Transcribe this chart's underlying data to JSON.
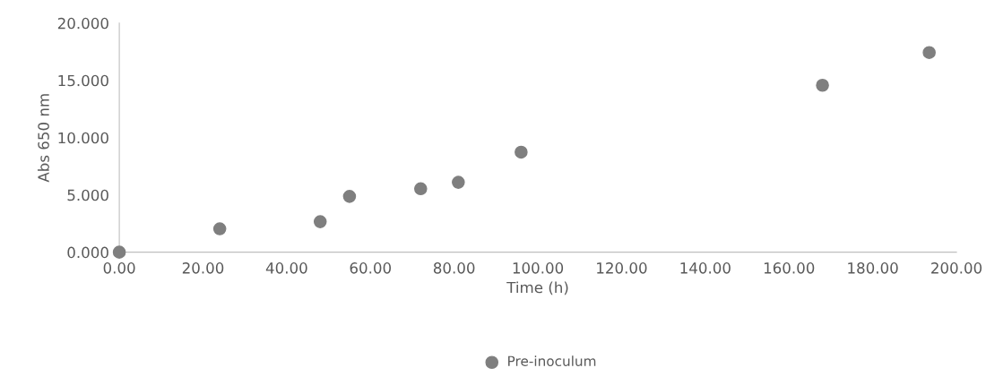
{
  "chart_data": {
    "type": "scatter",
    "xlabel": "Time (h)",
    "ylabel": "Abs 650 nm",
    "x": [
      0,
      24,
      48,
      55,
      72,
      81,
      96,
      168,
      193.5
    ],
    "series": [
      {
        "name": "Pre-inoculum",
        "color": "#7f7f7f",
        "values": [
          0,
          2.04,
          2.66,
          4.87,
          5.54,
          6.1,
          8.73,
          14.57,
          17.43
        ]
      }
    ],
    "xlim": [
      0,
      200
    ],
    "ylim": [
      0,
      20
    ],
    "xticks": [
      {
        "value": 0,
        "label": "0.00"
      },
      {
        "value": 20,
        "label": "20.00"
      },
      {
        "value": 40,
        "label": "40.00"
      },
      {
        "value": 60,
        "label": "60.00"
      },
      {
        "value": 80,
        "label": "80.00"
      },
      {
        "value": 100,
        "label": "100.00"
      },
      {
        "value": 120,
        "label": "120.00"
      },
      {
        "value": 140,
        "label": "140.00"
      },
      {
        "value": 160,
        "label": "160.00"
      },
      {
        "value": 180,
        "label": "180.00"
      },
      {
        "value": 200,
        "label": "200.00"
      }
    ],
    "yticks": [
      {
        "value": 0,
        "label": "0.000"
      },
      {
        "value": 5,
        "label": "5.000"
      },
      {
        "value": 10,
        "label": "10.000"
      },
      {
        "value": 15,
        "label": "15.000"
      },
      {
        "value": 20,
        "label": "20.000"
      }
    ],
    "marker": "circle",
    "grid": false,
    "legend": "bottom"
  }
}
